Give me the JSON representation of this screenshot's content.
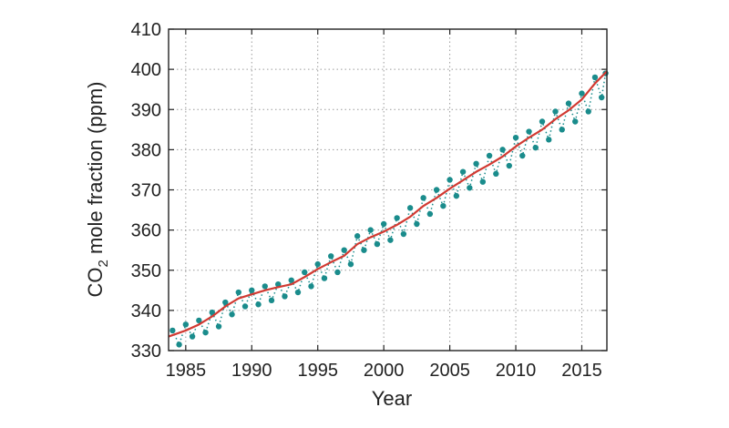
{
  "chart_data": {
    "type": "line",
    "title": "",
    "xlabel": "Year",
    "ylabel": {
      "prefix": "CO",
      "subscript": "2",
      "suffix": " mole fraction (ppm)"
    },
    "xlim": [
      1983.7,
      2016.9
    ],
    "ylim": [
      330,
      410
    ],
    "xticks": [
      1985,
      1990,
      1995,
      2000,
      2005,
      2010,
      2015
    ],
    "yticks": [
      330,
      340,
      350,
      360,
      370,
      380,
      390,
      400,
      410
    ],
    "grid": true,
    "colors": {
      "monthly": "#1a8c8c",
      "trend": "#d13a32",
      "axis": "#222222",
      "grid": "#9a9a9a"
    },
    "series": [
      {
        "style": "points-dotted",
        "x": [
          1984.0,
          1984.5,
          1985.0,
          1985.5,
          1986.0,
          1986.5,
          1987.0,
          1987.5,
          1988.0,
          1988.5,
          1989.0,
          1989.5,
          1990.0,
          1990.5,
          1991.0,
          1991.5,
          1992.0,
          1992.5,
          1993.0,
          1993.5,
          1994.0,
          1994.5,
          1995.0,
          1995.5,
          1996.0,
          1996.5,
          1997.0,
          1997.5,
          1998.0,
          1998.5,
          1999.0,
          1999.5,
          2000.0,
          2000.5,
          2001.0,
          2001.5,
          2002.0,
          2002.5,
          2003.0,
          2003.5,
          2004.0,
          2004.5,
          2005.0,
          2005.5,
          2006.0,
          2006.5,
          2007.0,
          2007.5,
          2008.0,
          2008.5,
          2009.0,
          2009.5,
          2010.0,
          2010.5,
          2011.0,
          2011.5,
          2012.0,
          2012.5,
          2013.0,
          2013.5,
          2014.0,
          2014.5,
          2015.0,
          2015.5,
          2016.0,
          2016.5,
          2016.8
        ],
        "y": [
          335.0,
          331.5,
          336.5,
          333.5,
          337.5,
          334.5,
          339.5,
          336.0,
          342.0,
          339.0,
          344.5,
          341.0,
          345.0,
          341.5,
          346.0,
          342.5,
          346.5,
          343.5,
          347.5,
          344.5,
          349.5,
          346.0,
          351.5,
          348.0,
          353.5,
          349.5,
          355.0,
          351.5,
          358.5,
          355.0,
          360.0,
          356.5,
          361.5,
          357.5,
          363.0,
          359.0,
          365.5,
          361.5,
          368.0,
          364.0,
          370.0,
          366.0,
          372.5,
          368.5,
          374.5,
          370.5,
          376.5,
          372.0,
          378.5,
          374.0,
          380.0,
          376.0,
          383.0,
          378.5,
          384.5,
          380.5,
          387.0,
          382.5,
          389.5,
          385.0,
          391.5,
          387.0,
          394.0,
          389.5,
          398.0,
          393.0,
          399.0
        ]
      },
      {
        "style": "line",
        "x": [
          1983.7,
          1985.0,
          1986.0,
          1987.0,
          1988.0,
          1989.0,
          1990.0,
          1991.0,
          1992.0,
          1993.0,
          1994.0,
          1995.0,
          1996.0,
          1997.0,
          1998.0,
          1999.0,
          2000.0,
          2001.0,
          2002.0,
          2003.0,
          2004.0,
          2005.0,
          2006.0,
          2007.0,
          2008.0,
          2009.0,
          2010.0,
          2011.0,
          2012.0,
          2013.0,
          2014.0,
          2015.0,
          2016.0,
          2016.9
        ],
        "y": [
          333.5,
          335.0,
          336.5,
          338.5,
          341.0,
          343.0,
          344.0,
          345.0,
          345.8,
          346.5,
          348.3,
          350.3,
          352.0,
          353.6,
          356.5,
          358.2,
          359.6,
          361.3,
          363.3,
          366.0,
          368.0,
          370.3,
          372.4,
          374.5,
          376.3,
          378.3,
          380.8,
          383.0,
          385.0,
          387.6,
          389.8,
          392.5,
          396.5,
          399.5
        ]
      }
    ]
  }
}
